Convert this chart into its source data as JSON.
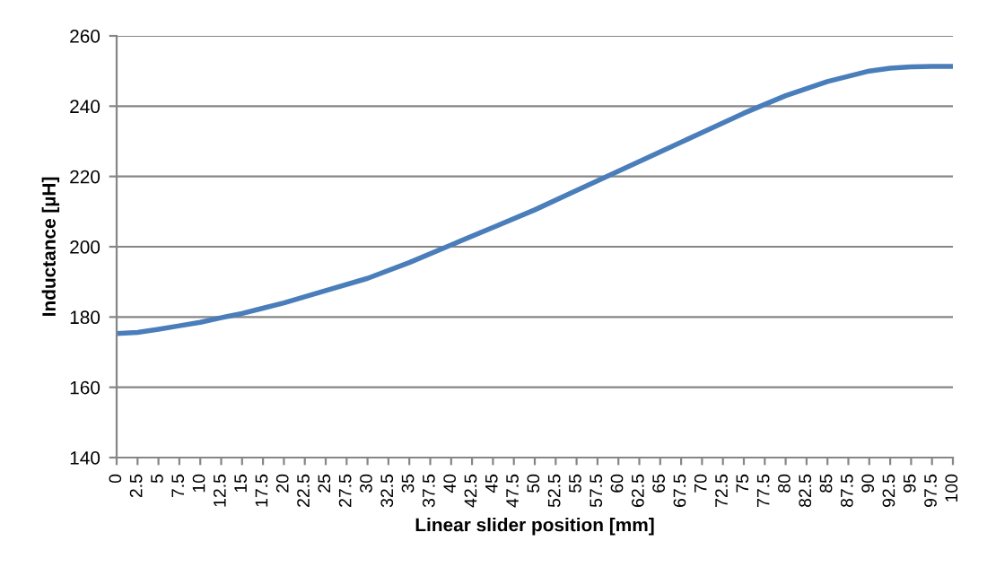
{
  "chart_data": {
    "type": "line",
    "xlabel": "Linear slider position [mm]",
    "ylabel": "Inductance [µH]",
    "x": [
      0,
      2.5,
      5,
      7.5,
      10,
      12.5,
      15,
      17.5,
      20,
      25,
      30,
      35,
      40,
      45,
      50,
      55,
      60,
      65,
      70,
      75,
      80,
      85,
      90,
      92.5,
      95,
      97.5,
      100
    ],
    "series": [
      {
        "color": "#4a7ebb",
        "values": [
          175.3,
          175.6,
          176.5,
          177.5,
          178.5,
          179.8,
          181,
          182.5,
          184,
          187.5,
          191,
          195.5,
          200.5,
          205.5,
          210.5,
          216,
          221.5,
          227,
          232.5,
          238,
          243,
          247,
          250,
          250.8,
          251.2,
          251.3,
          251.3
        ]
      }
    ],
    "xlim": [
      0,
      100
    ],
    "xticks": [
      0,
      2.5,
      5,
      7.5,
      10,
      12.5,
      15,
      17.5,
      20,
      22.5,
      25,
      27.5,
      30,
      32.5,
      35,
      37.5,
      40,
      42.5,
      45,
      47.5,
      50,
      52.5,
      55,
      57.5,
      60,
      62.5,
      65,
      67.5,
      70,
      72.5,
      75,
      77.5,
      80,
      82.5,
      85,
      87.5,
      90,
      92.5,
      95,
      97.5,
      100
    ],
    "ylim": [
      140,
      260
    ],
    "yticks": [
      140,
      160,
      180,
      200,
      220,
      240,
      260
    ],
    "grid": "y",
    "legend": false,
    "marker": "none",
    "line_style": "solid"
  }
}
